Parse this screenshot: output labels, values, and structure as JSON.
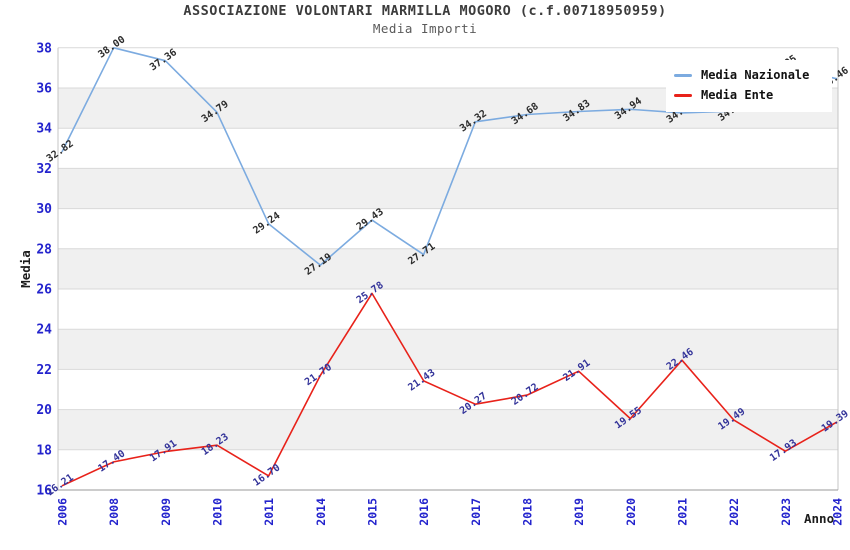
{
  "header": {
    "title": "ASSOCIAZIONE VOLONTARI MARMILLA MOGORO (c.f.00718950959)",
    "subtitle": "Media Importi"
  },
  "legend": {
    "items": [
      {
        "label": "Media Nazionale",
        "color": "#7cabe0"
      },
      {
        "label": "Media Ente",
        "color": "#e8221a"
      }
    ]
  },
  "axes": {
    "y_title": "Media",
    "x_title": "Anno",
    "y_ticks": [
      16,
      18,
      20,
      22,
      24,
      26,
      28,
      30,
      32,
      34,
      36,
      38
    ],
    "tick_color": "#2323cd"
  },
  "chart_data": {
    "type": "line",
    "title": "ASSOCIAZIONE VOLONTARI MARMILLA MOGORO (c.f.00718950959)",
    "subtitle": "Media Importi",
    "categories": [
      "2006",
      "2008",
      "2009",
      "2010",
      "2011",
      "2014",
      "2015",
      "2016",
      "2017",
      "2018",
      "2019",
      "2020",
      "2021",
      "2022",
      "2023",
      "2024"
    ],
    "series": [
      {
        "name": "Media Nazionale",
        "color": "#7cabe0",
        "label_color": "#2b2b2b",
        "values": [
          32.82,
          38.0,
          37.36,
          34.79,
          29.24,
          27.19,
          29.43,
          27.71,
          34.32,
          34.68,
          34.83,
          34.94,
          34.76,
          34.85,
          37.05,
          36.46
        ]
      },
      {
        "name": "Media Ente",
        "color": "#e8221a",
        "label_color": "#333399",
        "values": [
          16.21,
          17.4,
          17.91,
          18.23,
          16.7,
          21.7,
          25.78,
          21.43,
          20.27,
          20.72,
          21.91,
          19.55,
          22.46,
          19.49,
          17.93,
          19.39
        ]
      }
    ],
    "xlabel": "Anno",
    "ylabel": "Media",
    "ylim": [
      16,
      38
    ],
    "ytick_step": 2,
    "grid": "horizontal gridlines every 2 units with alternating light-gray bands (18-20, 22-24, 26-28, 30-32, 34-36)",
    "legend_position": "top-right",
    "point_label_format": "two decimals, rotated -35deg"
  },
  "style": {
    "band_color": "#f0f0f0",
    "gridline_color": "#d9d9d9",
    "plot_border_color": "#c4c4c4",
    "bottom_axis_color": "#9a9a9a"
  }
}
